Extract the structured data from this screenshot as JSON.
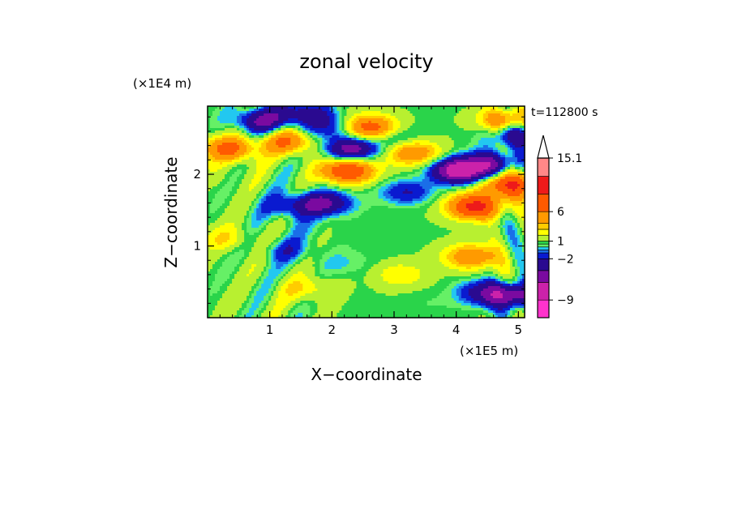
{
  "chart_data": {
    "type": "heatmap",
    "title": "zonal velocity",
    "xlabel": "X−coordinate",
    "ylabel": "Z−coordinate",
    "x_unit": "(×1E5 m)",
    "y_unit": "(×1E4 m)",
    "time_label": "t=112800 s",
    "xlim": [
      0,
      5.1
    ],
    "ylim": [
      0,
      2.95
    ],
    "x_ticks": [
      1,
      2,
      3,
      4,
      5
    ],
    "y_ticks": [
      1,
      2
    ],
    "colorbar": {
      "levels": [
        -12,
        -9,
        -6,
        -4,
        -2,
        -1,
        -0.5,
        0,
        0.5,
        1,
        2,
        3,
        4,
        6,
        9,
        12,
        15.1
      ],
      "colors": [
        "#ff33cc",
        "#cc22aa",
        "#7a0aa0",
        "#2a0a90",
        "#0a1ad0",
        "#1a6ee8",
        "#22c8f0",
        "#66f066",
        "#2ad44a",
        "#b8f030",
        "#ffff00",
        "#ffcc00",
        "#ff9a00",
        "#ff5a00",
        "#ee1a1a",
        "#ff8888",
        "#ffc0c0"
      ],
      "labeled_values": [
        15.1,
        6,
        1,
        -2,
        -9
      ],
      "labels": [
        "15.1",
        "6",
        "1",
        "−2",
        "−9"
      ]
    },
    "field_features": [
      {
        "x": 0.85,
        "z": 2.75,
        "u": -5
      },
      {
        "x": 1.55,
        "z": 2.85,
        "u": -4
      },
      {
        "x": 2.3,
        "z": 2.35,
        "u": -6
      },
      {
        "x": 2.0,
        "z": 2.65,
        "u": -3
      },
      {
        "x": 3.0,
        "z": 2.5,
        "u": -2
      },
      {
        "x": 4.05,
        "z": 2.05,
        "u": -9
      },
      {
        "x": 4.55,
        "z": 2.15,
        "u": -5
      },
      {
        "x": 4.9,
        "z": 2.55,
        "u": -4
      },
      {
        "x": 1.35,
        "z": 1.55,
        "u": -3
      },
      {
        "x": 1.9,
        "z": 1.6,
        "u": -5
      },
      {
        "x": 3.2,
        "z": 1.75,
        "u": -3
      },
      {
        "x": 1.25,
        "z": 0.95,
        "u": -2
      },
      {
        "x": 4.45,
        "z": 0.35,
        "u": -4
      },
      {
        "x": 4.95,
        "z": 0.3,
        "u": -6
      },
      {
        "x": 0.35,
        "z": 2.35,
        "u": 6
      },
      {
        "x": 1.3,
        "z": 2.45,
        "u": 5
      },
      {
        "x": 2.25,
        "z": 2.05,
        "u": 8
      },
      {
        "x": 3.3,
        "z": 2.3,
        "u": 5
      },
      {
        "x": 2.6,
        "z": 2.65,
        "u": 7
      },
      {
        "x": 4.3,
        "z": 1.55,
        "u": 9
      },
      {
        "x": 4.85,
        "z": 1.85,
        "u": 8
      },
      {
        "x": 4.8,
        "z": 2.75,
        "u": 5
      },
      {
        "x": 4.25,
        "z": 0.85,
        "u": 5
      },
      {
        "x": 3.1,
        "z": 0.6,
        "u": 2
      },
      {
        "x": 1.6,
        "z": 0.4,
        "u": 2
      },
      {
        "x": 0.3,
        "z": 1.1,
        "u": 2
      },
      {
        "x": 2.65,
        "z": 1.0,
        "u": -0.3
      },
      {
        "x": 2.2,
        "z": 0.75,
        "u": -1
      },
      {
        "x": 1.55,
        "z": 1.25,
        "u": -0.6
      },
      {
        "x": 3.6,
        "z": 0.2,
        "u": -0.4
      },
      {
        "x": 0.6,
        "z": 0.15,
        "u": 0.2
      },
      {
        "x": 0.1,
        "z": 2.0,
        "u": 0.6
      }
    ]
  }
}
